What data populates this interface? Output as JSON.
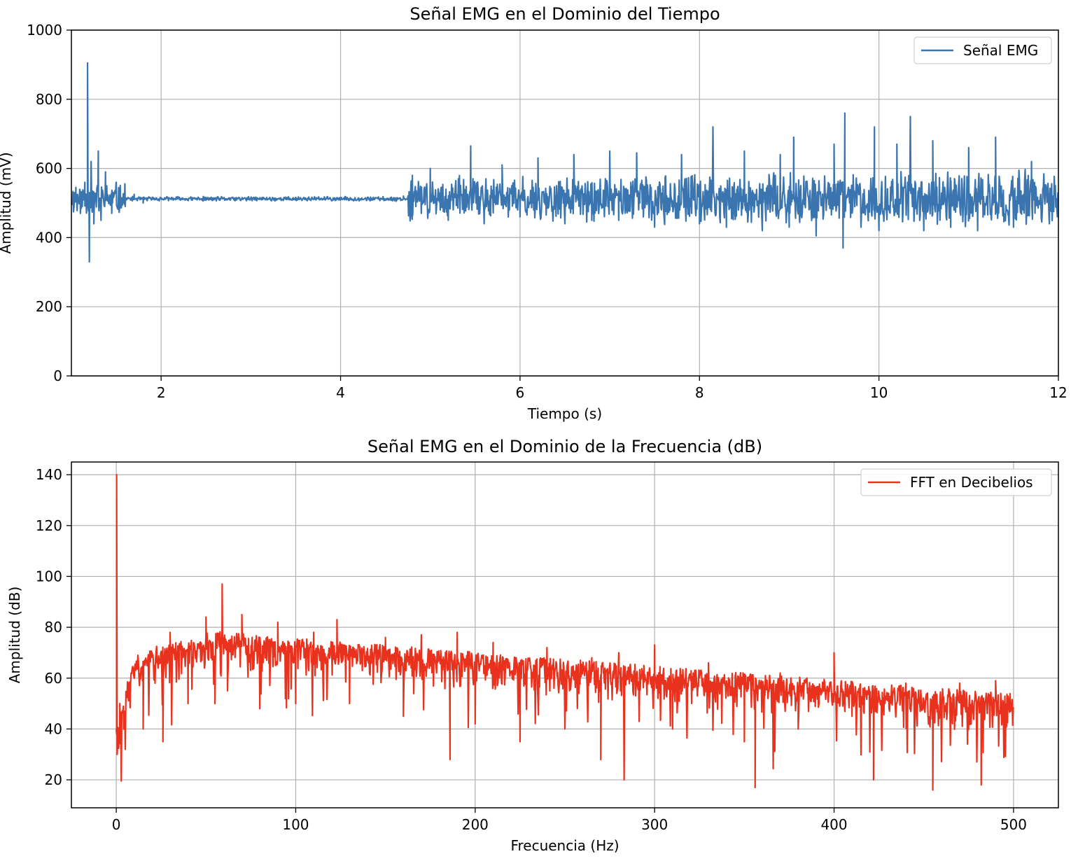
{
  "chart_data": [
    {
      "type": "line",
      "title": "Señal EMG en el Dominio del Tiempo",
      "xlabel": "Tiempo (s)",
      "ylabel": "Amplitud (mV)",
      "xlim": [
        1.0,
        12.0
      ],
      "ylim": [
        0,
        1000
      ],
      "xticks": [
        2,
        4,
        6,
        8,
        10,
        12
      ],
      "xtick_labels": [
        "2",
        "4",
        "6",
        "8",
        "10",
        "12"
      ],
      "yticks": [
        0,
        200,
        400,
        600,
        800,
        1000
      ],
      "ytick_labels": [
        "0",
        "200",
        "400",
        "600",
        "800",
        "1000"
      ],
      "grid": true,
      "legend_position": "top-right",
      "series": [
        {
          "name": "Señal EMG",
          "color": "#3a75b0",
          "points": [
            [
              1.0,
              510
            ],
            [
              1.05,
              545
            ],
            [
              1.1,
              470
            ],
            [
              1.15,
              560
            ],
            [
              1.18,
              905
            ],
            [
              1.2,
              330
            ],
            [
              1.22,
              620
            ],
            [
              1.25,
              440
            ],
            [
              1.3,
              650
            ],
            [
              1.33,
              450
            ],
            [
              1.38,
              590
            ],
            [
              1.45,
              470
            ],
            [
              1.5,
              560
            ],
            [
              1.6,
              490
            ],
            [
              1.7,
              525
            ],
            [
              1.8,
              500
            ],
            [
              2.0,
              512
            ],
            [
              2.5,
              508
            ],
            [
              3.0,
              515
            ],
            [
              3.5,
              509
            ],
            [
              4.0,
              513
            ],
            [
              4.5,
              508
            ],
            [
              4.7,
              520
            ],
            [
              4.8,
              580
            ],
            [
              4.9,
              470
            ],
            [
              5.0,
              600
            ],
            [
              5.2,
              450
            ],
            [
              5.45,
              665
            ],
            [
              5.6,
              440
            ],
            [
              5.8,
              610
            ],
            [
              6.0,
              460
            ],
            [
              6.2,
              630
            ],
            [
              6.5,
              440
            ],
            [
              6.6,
              640
            ],
            [
              6.8,
              450
            ],
            [
              7.0,
              650
            ],
            [
              7.1,
              450
            ],
            [
              7.3,
              645
            ],
            [
              7.5,
              430
            ],
            [
              7.8,
              640
            ],
            [
              8.0,
              440
            ],
            [
              8.15,
              720
            ],
            [
              8.3,
              430
            ],
            [
              8.5,
              650
            ],
            [
              8.7,
              420
            ],
            [
              8.9,
              640
            ],
            [
              9.0,
              430
            ],
            [
              9.05,
              690
            ],
            [
              9.3,
              405
            ],
            [
              9.5,
              670
            ],
            [
              9.6,
              370
            ],
            [
              9.62,
              760
            ],
            [
              9.8,
              430
            ],
            [
              9.95,
              720
            ],
            [
              10.0,
              420
            ],
            [
              10.2,
              670
            ],
            [
              10.35,
              750
            ],
            [
              10.5,
              420
            ],
            [
              10.6,
              680
            ],
            [
              10.8,
              430
            ],
            [
              11.0,
              660
            ],
            [
              11.1,
              420
            ],
            [
              11.3,
              690
            ],
            [
              11.5,
              430
            ],
            [
              11.7,
              620
            ],
            [
              11.9,
              440
            ],
            [
              12.0,
              520
            ]
          ]
        }
      ]
    },
    {
      "type": "line",
      "title": "Señal EMG en el Dominio de la Frecuencia (dB)",
      "xlabel": "Frecuencia (Hz)",
      "ylabel": "Amplitud (dB)",
      "xlim": [
        -25,
        525
      ],
      "ylim": [
        9,
        145
      ],
      "xticks": [
        0,
        100,
        200,
        300,
        400,
        500
      ],
      "xtick_labels": [
        "0",
        "100",
        "200",
        "300",
        "400",
        "500"
      ],
      "yticks": [
        20,
        40,
        60,
        80,
        100,
        120,
        140
      ],
      "ytick_labels": [
        "20",
        "40",
        "60",
        "80",
        "100",
        "120",
        "140"
      ],
      "grid": true,
      "legend_position": "top-right",
      "series": [
        {
          "name": "FFT en Decibelios",
          "color": "#e8321e",
          "points": [
            [
              0,
              40
            ],
            [
              0.2,
              140
            ],
            [
              0.5,
              30
            ],
            [
              2,
              50
            ],
            [
              5,
              32
            ],
            [
              10,
              60
            ],
            [
              15,
              40
            ],
            [
              20,
              70
            ],
            [
              26,
              35
            ],
            [
              30,
              78
            ],
            [
              40,
              50
            ],
            [
              50,
              84
            ],
            [
              55,
              50
            ],
            [
              59,
              97
            ],
            [
              62,
              55
            ],
            [
              70,
              85
            ],
            [
              80,
              48
            ],
            [
              90,
              82
            ],
            [
              100,
              50
            ],
            [
              110,
              78
            ],
            [
              123,
              83
            ],
            [
              130,
              50
            ],
            [
              150,
              76
            ],
            [
              160,
              45
            ],
            [
              170,
              77
            ],
            [
              186,
              28
            ],
            [
              190,
              78
            ],
            [
              200,
              42
            ],
            [
              210,
              74
            ],
            [
              225,
              35
            ],
            [
              240,
              72
            ],
            [
              250,
              40
            ],
            [
              265,
              68
            ],
            [
              270,
              28
            ],
            [
              280,
              70
            ],
            [
              283,
              20
            ],
            [
              300,
              73
            ],
            [
              310,
              40
            ],
            [
              330,
              66
            ],
            [
              350,
              35
            ],
            [
              356,
              17
            ],
            [
              370,
              62
            ],
            [
              380,
              40
            ],
            [
              400,
              70
            ],
            [
              410,
              45
            ],
            [
              422,
              20
            ],
            [
              440,
              58
            ],
            [
              455,
              16
            ],
            [
              470,
              58
            ],
            [
              482,
              18
            ],
            [
              490,
              59
            ],
            [
              500,
              48
            ]
          ]
        }
      ]
    }
  ]
}
